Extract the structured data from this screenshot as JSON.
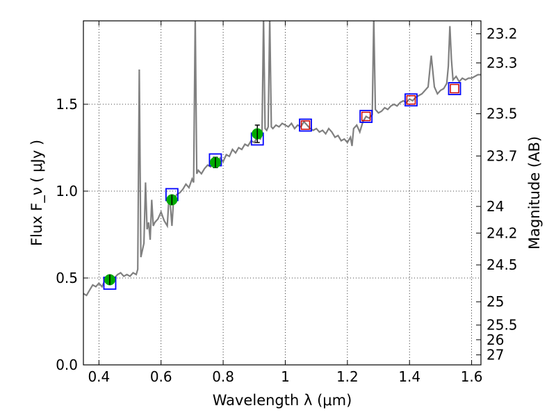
{
  "chart_data": {
    "type": "scatter",
    "xlabel": "Wavelength  λ (μm)",
    "ylabel": "Flux  F_ν ( μJy )",
    "ylabel_right": "Magnitude (AB)",
    "xlim": [
      0.35,
      1.63
    ],
    "ylim": [
      0.0,
      1.98
    ],
    "grid": true,
    "x_ticks": [
      0.4,
      0.6,
      0.8,
      1.0,
      1.2,
      1.4,
      1.6
    ],
    "x_tick_labels": [
      "0.4",
      "0.6",
      "0.8",
      "1",
      "1.2",
      "1.4",
      "1.6"
    ],
    "y_ticks": [
      0.0,
      0.5,
      1.0,
      1.5
    ],
    "y_tick_labels": [
      "0.0",
      "0.5",
      "1.0",
      "1.5"
    ],
    "mag_ticks": [
      "23.2",
      "23.3",
      "23.5",
      "23.7",
      "24",
      "24.2",
      "24.5",
      "25",
      "25.5",
      "26",
      "27"
    ],
    "colors": {
      "spectrum": "#808080",
      "observed": "#00aa00",
      "model_box": "#0000ff",
      "model_inner": "#cc0000",
      "errorbar": "#000000"
    },
    "series": [
      {
        "kind": "spectrum",
        "points": [
          [
            0.35,
            0.41
          ],
          [
            0.36,
            0.4
          ],
          [
            0.37,
            0.43
          ],
          [
            0.38,
            0.46
          ],
          [
            0.39,
            0.45
          ],
          [
            0.4,
            0.47
          ],
          [
            0.41,
            0.45
          ],
          [
            0.42,
            0.49
          ],
          [
            0.43,
            0.48
          ],
          [
            0.44,
            0.51
          ],
          [
            0.45,
            0.5
          ],
          [
            0.46,
            0.52
          ],
          [
            0.47,
            0.53
          ],
          [
            0.48,
            0.51
          ],
          [
            0.49,
            0.52
          ],
          [
            0.5,
            0.51
          ],
          [
            0.51,
            0.53
          ],
          [
            0.52,
            0.52
          ],
          [
            0.525,
            0.55
          ],
          [
            0.53,
            1.7
          ],
          [
            0.535,
            0.62
          ],
          [
            0.54,
            0.66
          ],
          [
            0.545,
            0.7
          ],
          [
            0.55,
            1.05
          ],
          [
            0.555,
            0.78
          ],
          [
            0.56,
            0.82
          ],
          [
            0.565,
            0.72
          ],
          [
            0.57,
            0.95
          ],
          [
            0.575,
            0.8
          ],
          [
            0.58,
            0.82
          ],
          [
            0.59,
            0.84
          ],
          [
            0.6,
            0.88
          ],
          [
            0.61,
            0.83
          ],
          [
            0.62,
            0.8
          ],
          [
            0.625,
            0.95
          ],
          [
            0.63,
            0.92
          ],
          [
            0.635,
            0.8
          ],
          [
            0.64,
            0.94
          ],
          [
            0.65,
            0.98
          ],
          [
            0.66,
            0.99
          ],
          [
            0.67,
            1.01
          ],
          [
            0.68,
            1.04
          ],
          [
            0.69,
            1.02
          ],
          [
            0.7,
            1.07
          ],
          [
            0.705,
            1.05
          ],
          [
            0.71,
            2.0
          ],
          [
            0.715,
            1.1
          ],
          [
            0.72,
            1.12
          ],
          [
            0.73,
            1.1
          ],
          [
            0.74,
            1.13
          ],
          [
            0.75,
            1.15
          ],
          [
            0.76,
            1.14
          ],
          [
            0.77,
            1.17
          ],
          [
            0.78,
            1.16
          ],
          [
            0.79,
            1.19
          ],
          [
            0.8,
            1.17
          ],
          [
            0.81,
            1.21
          ],
          [
            0.82,
            1.2
          ],
          [
            0.83,
            1.24
          ],
          [
            0.84,
            1.22
          ],
          [
            0.85,
            1.25
          ],
          [
            0.86,
            1.24
          ],
          [
            0.87,
            1.27
          ],
          [
            0.88,
            1.26
          ],
          [
            0.89,
            1.29
          ],
          [
            0.9,
            1.28
          ],
          [
            0.91,
            1.31
          ],
          [
            0.92,
            1.3
          ],
          [
            0.925,
            1.33
          ],
          [
            0.93,
            2.0
          ],
          [
            0.935,
            1.36
          ],
          [
            0.94,
            1.35
          ],
          [
            0.945,
            1.37
          ],
          [
            0.95,
            2.0
          ],
          [
            0.955,
            1.37
          ],
          [
            0.96,
            1.36
          ],
          [
            0.97,
            1.38
          ],
          [
            0.98,
            1.37
          ],
          [
            0.99,
            1.39
          ],
          [
            1.0,
            1.38
          ],
          [
            1.01,
            1.37
          ],
          [
            1.02,
            1.39
          ],
          [
            1.03,
            1.36
          ],
          [
            1.04,
            1.38
          ],
          [
            1.05,
            1.37
          ],
          [
            1.06,
            1.4
          ],
          [
            1.07,
            1.38
          ],
          [
            1.08,
            1.36
          ],
          [
            1.09,
            1.35
          ],
          [
            1.1,
            1.36
          ],
          [
            1.11,
            1.34
          ],
          [
            1.12,
            1.35
          ],
          [
            1.13,
            1.33
          ],
          [
            1.14,
            1.36
          ],
          [
            1.15,
            1.34
          ],
          [
            1.16,
            1.31
          ],
          [
            1.17,
            1.32
          ],
          [
            1.18,
            1.29
          ],
          [
            1.19,
            1.3
          ],
          [
            1.2,
            1.28
          ],
          [
            1.21,
            1.31
          ],
          [
            1.215,
            1.26
          ],
          [
            1.22,
            1.36
          ],
          [
            1.23,
            1.38
          ],
          [
            1.24,
            1.34
          ],
          [
            1.25,
            1.4
          ],
          [
            1.26,
            1.43
          ],
          [
            1.27,
            1.42
          ],
          [
            1.28,
            1.44
          ],
          [
            1.285,
            2.0
          ],
          [
            1.29,
            1.47
          ],
          [
            1.3,
            1.45
          ],
          [
            1.31,
            1.46
          ],
          [
            1.32,
            1.48
          ],
          [
            1.33,
            1.47
          ],
          [
            1.34,
            1.49
          ],
          [
            1.35,
            1.5
          ],
          [
            1.36,
            1.49
          ],
          [
            1.37,
            1.51
          ],
          [
            1.38,
            1.52
          ],
          [
            1.39,
            1.51
          ],
          [
            1.4,
            1.53
          ],
          [
            1.41,
            1.52
          ],
          [
            1.42,
            1.54
          ],
          [
            1.43,
            1.55
          ],
          [
            1.44,
            1.56
          ],
          [
            1.45,
            1.58
          ],
          [
            1.46,
            1.6
          ],
          [
            1.47,
            1.78
          ],
          [
            1.48,
            1.6
          ],
          [
            1.49,
            1.56
          ],
          [
            1.5,
            1.58
          ],
          [
            1.51,
            1.59
          ],
          [
            1.52,
            1.62
          ],
          [
            1.525,
            1.72
          ],
          [
            1.53,
            1.95
          ],
          [
            1.535,
            1.76
          ],
          [
            1.54,
            1.64
          ],
          [
            1.55,
            1.66
          ],
          [
            1.56,
            1.63
          ],
          [
            1.57,
            1.65
          ],
          [
            1.58,
            1.64
          ],
          [
            1.59,
            1.65
          ],
          [
            1.6,
            1.65
          ],
          [
            1.61,
            1.66
          ],
          [
            1.62,
            1.67
          ],
          [
            1.63,
            1.67
          ]
        ]
      },
      {
        "kind": "observed",
        "x": [
          0.435,
          0.635,
          0.775,
          0.91
        ],
        "y": [
          0.49,
          0.95,
          1.165,
          1.33
        ],
        "yerr": [
          0.022,
          0.025,
          0.03,
          0.05
        ]
      },
      {
        "kind": "model",
        "x": [
          0.435,
          0.635,
          0.775,
          0.91,
          1.065,
          1.26,
          1.405,
          1.545
        ],
        "y": [
          0.47,
          0.98,
          1.18,
          1.3,
          1.38,
          1.43,
          1.525,
          1.59
        ]
      }
    ]
  }
}
